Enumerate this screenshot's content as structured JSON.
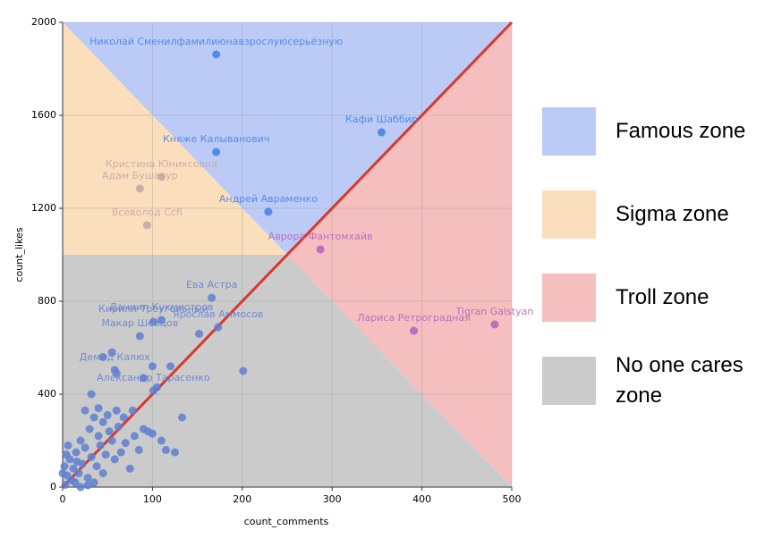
{
  "chart_data": {
    "type": "scatter",
    "x_label": "count_comments",
    "y_label": "count_likes",
    "xlim": [
      0,
      500
    ],
    "ylim": [
      0,
      2000
    ],
    "xticks": [
      0,
      100,
      200,
      300,
      400,
      500
    ],
    "yticks": [
      0,
      400,
      800,
      1200,
      1600,
      2000
    ],
    "grid": true,
    "series": [
      {
        "name": "Famous zone",
        "zone_color": "#bccbf6",
        "color": "#3d82e6",
        "x": [
          171,
          355,
          171,
          229
        ],
        "values": [
          1862,
          1527,
          1442,
          1185
        ],
        "point_labels": [
          "Николай Сменилфамилиюнавзрослуюсерьёзную",
          "Кафи Шаббир",
          "Княже Калыванович",
          "Андрей Авраменко"
        ]
      },
      {
        "name": "Sigma zone",
        "zone_color": "#fbdfbc",
        "color": "#c7a2a4",
        "x": [
          110,
          86,
          94
        ],
        "values": [
          1335,
          1285,
          1127
        ],
        "point_labels": [
          "Кристина Юниксовна",
          "Адам Бушакур",
          "Всеволод Ccfl"
        ]
      },
      {
        "name": "Troll zone",
        "zone_color": "#f5bfbf",
        "color": "#b35fbd",
        "x": [
          287,
          391,
          481
        ],
        "values": [
          1023,
          673,
          700
        ],
        "point_labels": [
          "Аврора Фантомхайв",
          "Лариса Ретроградная",
          "Tigran Galstyan"
        ]
      },
      {
        "name": "No one cares zone",
        "zone_color": "#cbcbcb",
        "color": "#5f7fd2",
        "x": [
          166,
          110,
          101,
          86,
          173,
          58,
          101,
          201,
          152,
          5,
          8,
          10,
          12,
          15,
          18,
          20,
          22,
          25,
          28,
          30,
          32,
          35,
          38,
          40,
          42,
          45,
          48,
          50,
          52,
          55,
          58,
          60,
          62,
          65,
          68,
          70,
          75,
          78,
          80,
          85,
          90,
          95,
          100,
          110,
          115,
          125,
          133,
          100,
          105,
          90,
          60,
          55,
          45,
          32,
          40,
          25,
          120,
          3,
          2,
          6,
          14,
          16,
          0,
          4,
          35,
          45,
          28,
          20
        ],
        "values": [
          815,
          719,
          712,
          650,
          688,
          504,
          415,
          500,
          660,
          50,
          120,
          30,
          80,
          150,
          60,
          200,
          100,
          170,
          40,
          250,
          130,
          300,
          90,
          220,
          180,
          280,
          140,
          310,
          240,
          200,
          120,
          330,
          260,
          150,
          300,
          190,
          80,
          330,
          220,
          160,
          250,
          240,
          230,
          200,
          160,
          150,
          300,
          520,
          430,
          470,
          490,
          580,
          560,
          400,
          340,
          330,
          520,
          10,
          90,
          180,
          20,
          110,
          60,
          140,
          20,
          60,
          8,
          0
        ],
        "point_labels": [
          "Ева Астра",
          "Даниил Кухмистров",
          "Кирилл Треугольный",
          "Макар Шевцов",
          "Ярослав Аммосов",
          "Демид Калюх",
          "Александр Тарасенко",
          null,
          null,
          null,
          null,
          null,
          null,
          null,
          null,
          null,
          null,
          null,
          null,
          null,
          null,
          null,
          null,
          null,
          null,
          null,
          null,
          null,
          null,
          null,
          null,
          null,
          null,
          null,
          null,
          null,
          null,
          null,
          null,
          null,
          null,
          null,
          null,
          null,
          null,
          null,
          null,
          null,
          null,
          null,
          null,
          null,
          null,
          null,
          null,
          null,
          null,
          null,
          null,
          null,
          null,
          null,
          null,
          null,
          null,
          null,
          null,
          null
        ]
      }
    ]
  }
}
